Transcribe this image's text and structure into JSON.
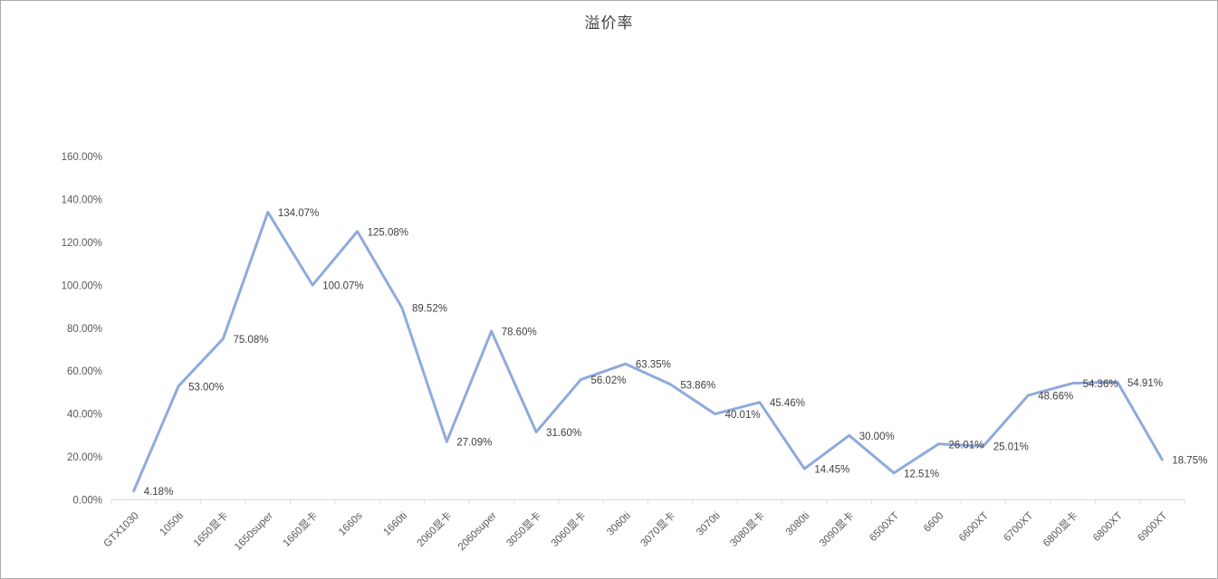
{
  "chart_data": {
    "type": "line",
    "title": "溢价率",
    "categories": [
      "GTX1030",
      "1050ti",
      "1650显卡",
      "1650super",
      "1660显卡",
      "1660s",
      "1660ti",
      "2060显卡",
      "2060super",
      "3050显卡",
      "3060显卡",
      "3060ti",
      "3070显卡",
      "3070ti",
      "3080显卡",
      "3080ti",
      "3090显卡",
      "6500XT",
      "6600",
      "6600XT",
      "6700XT",
      "6800显卡",
      "6800XT",
      "6900XT"
    ],
    "values": [
      4.18,
      53.0,
      75.08,
      134.07,
      100.07,
      125.08,
      89.52,
      27.09,
      78.6,
      31.6,
      56.02,
      63.35,
      53.86,
      40.01,
      45.46,
      14.45,
      30.0,
      12.51,
      26.01,
      25.01,
      48.66,
      54.36,
      54.91,
      18.75
    ],
    "data_labels": [
      "4.18%",
      "53.00%",
      "75.08%",
      "134.07%",
      "100.07%",
      "125.08%",
      "89.52%",
      "27.09%",
      "78.60%",
      "31.60%",
      "56.02%",
      "63.35%",
      "53.86%",
      "40.01%",
      "45.46%",
      "14.45%",
      "30.00%",
      "12.51%",
      "26.01%",
      "25.01%",
      "48.66%",
      "54.36%",
      "54.91%",
      "18.75%"
    ],
    "y_tick_labels": [
      "0.00%",
      "20.00%",
      "40.00%",
      "60.00%",
      "80.00%",
      "100.00%",
      "120.00%",
      "140.00%",
      "160.00%"
    ],
    "ylim": [
      0,
      160
    ],
    "xlabel": "",
    "ylabel": "",
    "grid": false,
    "legend_position": "none",
    "colors": {
      "line": "#8FAADC",
      "axis_line": "#D9D9D9",
      "tick_label": "#595959",
      "data_label": "#404040",
      "title": "#404040",
      "frame_border": "#ABABAB"
    }
  }
}
